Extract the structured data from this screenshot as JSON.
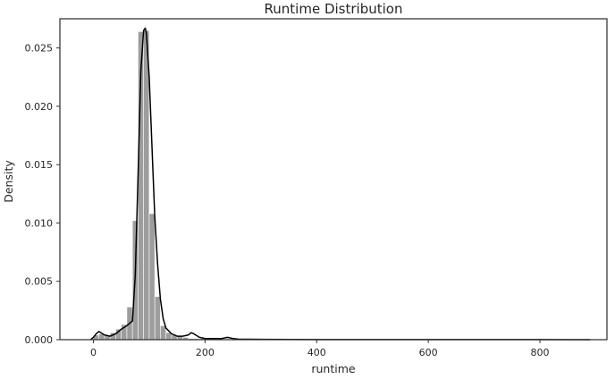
{
  "chart_data": {
    "type": "bar",
    "title": "Runtime Distribution",
    "xlabel": "runtime",
    "ylabel": "Density",
    "xlim": [
      -60,
      920
    ],
    "ylim": [
      0,
      0.0275
    ],
    "x_ticks": [
      0,
      200,
      400,
      600,
      800
    ],
    "y_ticks": [
      0.0,
      0.005,
      0.01,
      0.015,
      0.02,
      0.025
    ],
    "y_tick_labels": [
      "0.000",
      "0.005",
      "0.010",
      "0.015",
      "0.020",
      "0.025"
    ],
    "grid": false,
    "legend": "none",
    "histogram": {
      "bin_edges": [
        0,
        10,
        20,
        30,
        40,
        50,
        60,
        70,
        80,
        90,
        100,
        110,
        120,
        130,
        140,
        150,
        160,
        170,
        180,
        190,
        200,
        210,
        220,
        230,
        240,
        250,
        260,
        270,
        280,
        290,
        300,
        310,
        320,
        330,
        340,
        350,
        360,
        370,
        380,
        390,
        400,
        410,
        420,
        430,
        440,
        450,
        460,
        470,
        480,
        490,
        500,
        510,
        520,
        530,
        540,
        550,
        560,
        570,
        580,
        590,
        600,
        610,
        620,
        630,
        640,
        650,
        660,
        670,
        680,
        690,
        700,
        710,
        720,
        730,
        740,
        750,
        760,
        770,
        780,
        790,
        800,
        810,
        820,
        830,
        840,
        850,
        860,
        870,
        880,
        890
      ],
      "density": [
        0.0004,
        0.0005,
        0.0004,
        0.0006,
        0.0009,
        0.0013,
        0.0028,
        0.0102,
        0.0264,
        0.0265,
        0.0108,
        0.0037,
        0.0012,
        0.0006,
        0.0004,
        0.0003,
        0.0002,
        0.0001,
        0.0001,
        0.0001,
        0.0001,
        0.0001,
        0.0001,
        5e-05,
        5e-05,
        5e-05,
        3e-05,
        3e-05,
        2e-05,
        2e-05,
        2e-05,
        1e-05,
        1e-05,
        1e-05,
        1e-05,
        1e-05,
        1e-05,
        1e-05,
        1e-05,
        1e-05,
        1e-05,
        1e-05,
        1e-05,
        1e-05,
        1e-05,
        1e-05,
        1e-05,
        1e-05,
        1e-05,
        1e-05,
        1e-05,
        1e-05,
        1e-05,
        1e-05,
        1e-05,
        1e-05,
        1e-05,
        1e-05,
        1e-05,
        1e-05,
        1e-05,
        1e-05,
        1e-05,
        1e-05,
        1e-05,
        1e-05,
        1e-05,
        1e-05,
        1e-05,
        1e-05,
        1e-05,
        1e-05,
        1e-05,
        1e-05,
        1e-05,
        1e-05,
        1e-05,
        1e-05,
        1e-05,
        1e-05,
        1e-05,
        1e-05,
        1e-05,
        1e-05,
        1e-05,
        1e-05,
        1e-05,
        1e-05,
        1e-05
      ],
      "color": "#8c8c8c"
    },
    "kde": {
      "x": [
        -5,
        0,
        5,
        10,
        20,
        30,
        40,
        50,
        60,
        70,
        75,
        80,
        85,
        90,
        93,
        95,
        100,
        105,
        110,
        115,
        120,
        125,
        130,
        140,
        150,
        160,
        170,
        175,
        180,
        190,
        200,
        210,
        220,
        230,
        240,
        250,
        260,
        300,
        400,
        500,
        600,
        700,
        800,
        890
      ],
      "y": [
        0.0,
        0.0002,
        0.0005,
        0.0007,
        0.0004,
        0.0003,
        0.0005,
        0.0009,
        0.0012,
        0.0016,
        0.0055,
        0.014,
        0.023,
        0.0265,
        0.0267,
        0.0262,
        0.0225,
        0.0165,
        0.0105,
        0.0065,
        0.0035,
        0.0018,
        0.001,
        0.0005,
        0.0003,
        0.0003,
        0.0004,
        0.0006,
        0.0005,
        0.0002,
        0.0001,
        0.0001,
        0.0001,
        0.0001,
        0.0002,
        0.0001,
        5e-05,
        3e-05,
        1e-05,
        1e-05,
        1e-05,
        1e-05,
        1e-05,
        0.0
      ],
      "color": "#000000"
    }
  }
}
